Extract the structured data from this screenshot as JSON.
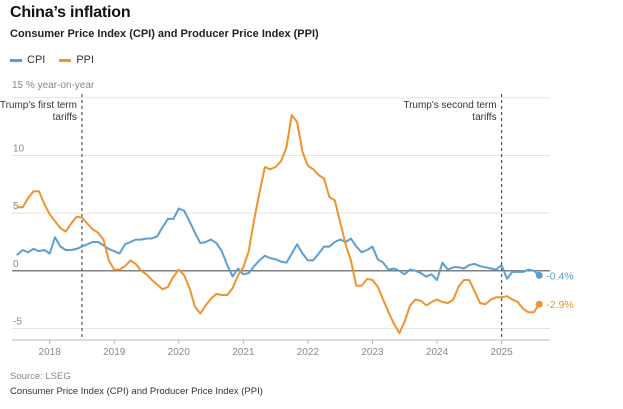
{
  "header": {
    "title": "China’s inflation",
    "subtitle": "Consumer Price Index (CPI) and Producer Price Index (PPI)",
    "unit": "15 % year-on-year"
  },
  "legend": [
    {
      "label": "CPI",
      "color": "#5b9fd1"
    },
    {
      "label": "PPI",
      "color": "#f0922d"
    }
  ],
  "footer": {
    "source": "Source: LSEG",
    "footnote": "Consumer Price Index (CPI) and Producer Price Index (PPI)"
  },
  "chart_data": {
    "type": "line",
    "title": "China’s inflation",
    "subtitle": "Consumer Price Index (CPI) and Producer Price Index (PPI)",
    "ylabel": "15 % year-on-year",
    "ylim": [
      -6,
      15.5
    ],
    "xlim": [
      "2017-06",
      "2025-10"
    ],
    "y_ticks": [
      {
        "value": 15,
        "label": ""
      },
      {
        "value": 10,
        "label": "10"
      },
      {
        "value": 5,
        "label": "5"
      },
      {
        "value": 0,
        "label": "0"
      },
      {
        "value": -5,
        "label": "-5"
      }
    ],
    "x_ticks": [
      {
        "date": "2018-01",
        "label": "2018"
      },
      {
        "date": "2019-01",
        "label": "2019"
      },
      {
        "date": "2020-01",
        "label": "2020"
      },
      {
        "date": "2021-01",
        "label": "2021"
      },
      {
        "date": "2022-01",
        "label": "2022"
      },
      {
        "date": "2023-01",
        "label": "2023"
      },
      {
        "date": "2024-01",
        "label": "2024"
      },
      {
        "date": "2025-01",
        "label": "2025"
      }
    ],
    "grid": true,
    "legend_position": "top-left",
    "annotations": [
      {
        "date": "2018-07",
        "lines": [
          "Trump's first term",
          "tariffs"
        ],
        "align": "right"
      },
      {
        "date": "2025-01",
        "lines": [
          "Trump's second term",
          "tariffs"
        ],
        "align": "right"
      }
    ],
    "end_labels": [
      {
        "series": "CPI",
        "text": "-0.4%"
      },
      {
        "series": "PPI",
        "text": "-2.9%"
      }
    ],
    "series": [
      {
        "name": "CPI",
        "color": "#5b9fd1",
        "x": [
          "2017-07",
          "2017-08",
          "2017-09",
          "2017-10",
          "2017-11",
          "2017-12",
          "2018-01",
          "2018-02",
          "2018-03",
          "2018-04",
          "2018-05",
          "2018-06",
          "2018-07",
          "2018-08",
          "2018-09",
          "2018-10",
          "2018-11",
          "2018-12",
          "2019-01",
          "2019-02",
          "2019-03",
          "2019-04",
          "2019-05",
          "2019-06",
          "2019-07",
          "2019-08",
          "2019-09",
          "2019-10",
          "2019-11",
          "2019-12",
          "2020-01",
          "2020-02",
          "2020-03",
          "2020-04",
          "2020-05",
          "2020-06",
          "2020-07",
          "2020-08",
          "2020-09",
          "2020-10",
          "2020-11",
          "2020-12",
          "2021-01",
          "2021-02",
          "2021-03",
          "2021-04",
          "2021-05",
          "2021-06",
          "2021-07",
          "2021-08",
          "2021-09",
          "2021-10",
          "2021-11",
          "2021-12",
          "2022-01",
          "2022-02",
          "2022-03",
          "2022-04",
          "2022-05",
          "2022-06",
          "2022-07",
          "2022-08",
          "2022-09",
          "2022-10",
          "2022-11",
          "2022-12",
          "2023-01",
          "2023-02",
          "2023-03",
          "2023-04",
          "2023-05",
          "2023-06",
          "2023-07",
          "2023-08",
          "2023-09",
          "2023-10",
          "2023-11",
          "2023-12",
          "2024-01",
          "2024-02",
          "2024-03",
          "2024-04",
          "2024-05",
          "2024-06",
          "2024-07",
          "2024-08",
          "2024-09",
          "2024-10",
          "2024-11",
          "2024-12",
          "2025-01",
          "2025-02",
          "2025-03",
          "2025-04",
          "2025-05",
          "2025-06",
          "2025-07",
          "2025-08"
        ],
        "values": [
          1.4,
          1.8,
          1.6,
          1.9,
          1.7,
          1.8,
          1.5,
          2.9,
          2.1,
          1.8,
          1.8,
          1.9,
          2.1,
          2.3,
          2.5,
          2.5,
          2.2,
          1.9,
          1.7,
          1.5,
          2.3,
          2.5,
          2.7,
          2.7,
          2.8,
          2.8,
          3.0,
          3.8,
          4.5,
          4.5,
          5.4,
          5.2,
          4.3,
          3.3,
          2.4,
          2.5,
          2.7,
          2.4,
          1.7,
          0.5,
          -0.5,
          0.2,
          -0.3,
          -0.2,
          0.4,
          0.9,
          1.3,
          1.1,
          1.0,
          0.8,
          0.7,
          1.5,
          2.3,
          1.5,
          0.9,
          0.9,
          1.5,
          2.1,
          2.1,
          2.5,
          2.7,
          2.5,
          2.8,
          2.1,
          1.6,
          1.8,
          2.1,
          1.0,
          0.7,
          0.1,
          0.2,
          0.0,
          -0.3,
          0.1,
          0.0,
          -0.2,
          -0.5,
          -0.3,
          -0.8,
          0.7,
          0.1,
          0.3,
          0.3,
          0.2,
          0.5,
          0.6,
          0.4,
          0.3,
          0.2,
          0.1,
          0.5,
          -0.7,
          -0.1,
          -0.1,
          -0.1,
          0.1,
          0.0,
          -0.4
        ]
      },
      {
        "name": "PPI",
        "color": "#f0922d",
        "x": [
          "2017-07",
          "2017-08",
          "2017-09",
          "2017-10",
          "2017-11",
          "2017-12",
          "2018-01",
          "2018-02",
          "2018-03",
          "2018-04",
          "2018-05",
          "2018-06",
          "2018-07",
          "2018-08",
          "2018-09",
          "2018-10",
          "2018-11",
          "2018-12",
          "2019-01",
          "2019-02",
          "2019-03",
          "2019-04",
          "2019-05",
          "2019-06",
          "2019-07",
          "2019-08",
          "2019-09",
          "2019-10",
          "2019-11",
          "2019-12",
          "2020-01",
          "2020-02",
          "2020-03",
          "2020-04",
          "2020-05",
          "2020-06",
          "2020-07",
          "2020-08",
          "2020-09",
          "2020-10",
          "2020-11",
          "2020-12",
          "2021-01",
          "2021-02",
          "2021-03",
          "2021-04",
          "2021-05",
          "2021-06",
          "2021-07",
          "2021-08",
          "2021-09",
          "2021-10",
          "2021-11",
          "2021-12",
          "2022-01",
          "2022-02",
          "2022-03",
          "2022-04",
          "2022-05",
          "2022-06",
          "2022-07",
          "2022-08",
          "2022-09",
          "2022-10",
          "2022-11",
          "2022-12",
          "2023-01",
          "2023-02",
          "2023-03",
          "2023-04",
          "2023-05",
          "2023-06",
          "2023-07",
          "2023-08",
          "2023-09",
          "2023-10",
          "2023-11",
          "2023-12",
          "2024-01",
          "2024-02",
          "2024-03",
          "2024-04",
          "2024-05",
          "2024-06",
          "2024-07",
          "2024-08",
          "2024-09",
          "2024-10",
          "2024-11",
          "2024-12",
          "2025-01",
          "2025-02",
          "2025-03",
          "2025-04",
          "2025-05",
          "2025-06",
          "2025-07",
          "2025-08"
        ],
        "values": [
          5.5,
          5.5,
          6.3,
          6.9,
          6.9,
          5.8,
          4.9,
          4.3,
          3.7,
          3.4,
          4.1,
          4.7,
          4.6,
          4.1,
          3.6,
          3.3,
          2.7,
          0.9,
          0.1,
          0.1,
          0.4,
          0.9,
          0.6,
          0.0,
          -0.3,
          -0.8,
          -1.2,
          -1.6,
          -1.4,
          -0.5,
          0.1,
          -0.4,
          -1.5,
          -3.1,
          -3.7,
          -3.0,
          -2.4,
          -2.0,
          -2.1,
          -2.1,
          -1.5,
          -0.4,
          0.3,
          1.7,
          4.4,
          6.8,
          9.0,
          8.8,
          9.0,
          9.5,
          10.7,
          13.5,
          12.9,
          10.3,
          9.1,
          8.8,
          8.3,
          8.0,
          6.4,
          6.1,
          4.2,
          2.3,
          0.9,
          -1.3,
          -1.3,
          -0.7,
          -0.8,
          -1.4,
          -2.5,
          -3.6,
          -4.6,
          -5.4,
          -4.4,
          -3.0,
          -2.5,
          -2.6,
          -3.0,
          -2.7,
          -2.5,
          -2.7,
          -2.8,
          -2.5,
          -1.4,
          -0.8,
          -0.8,
          -1.8,
          -2.8,
          -2.9,
          -2.5,
          -2.3,
          -2.3,
          -2.2,
          -2.5,
          -2.7,
          -3.3,
          -3.6,
          -3.6,
          -2.9
        ]
      }
    ]
  }
}
